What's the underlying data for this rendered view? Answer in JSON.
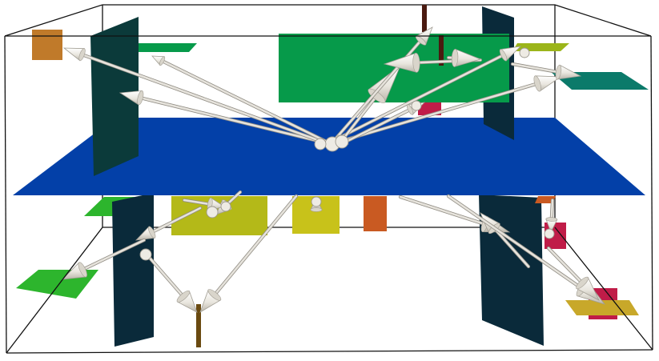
{
  "scene": {
    "kind": "3d-wireframe-box-with-planes-and-arrows",
    "background": "#ffffff",
    "palette": {
      "box_edge": "#111111",
      "main_plane": "#0340a8",
      "dark_teal_plane": "#0b3a3a",
      "navy_plane": "#0a2a3a",
      "green_plane": "#069a4a",
      "bright_green": "#2db52d",
      "teal_plane": "#0b7a6a",
      "olive_yellow": "#b4b918",
      "yellow": "#c8c21a",
      "orange": "#c95a22",
      "brown_orange": "#c07a2a",
      "crimson": "#c01c48",
      "lime_yellow": "#9bb51a",
      "gold": "#c8a82a",
      "arrow_shaft": "#e6e3dc",
      "arrow_cone": "#ebe8df"
    },
    "arrow_count": 24,
    "labels": []
  }
}
